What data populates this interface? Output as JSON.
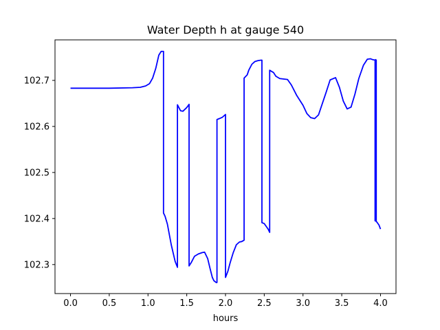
{
  "chart_data": {
    "type": "line",
    "title": "Water Depth h at gauge 540",
    "xlabel": "hours",
    "ylabel": "",
    "xlim": [
      -0.2,
      4.2
    ],
    "ylim": [
      102.237,
      102.788
    ],
    "grid": false,
    "x_ticks": [
      {
        "value": 0.0,
        "label": "0.0"
      },
      {
        "value": 0.5,
        "label": "0.5"
      },
      {
        "value": 1.0,
        "label": "1.0"
      },
      {
        "value": 1.5,
        "label": "1.5"
      },
      {
        "value": 2.0,
        "label": "2.0"
      },
      {
        "value": 2.5,
        "label": "2.5"
      },
      {
        "value": 3.0,
        "label": "3.0"
      },
      {
        "value": 3.5,
        "label": "3.5"
      },
      {
        "value": 4.0,
        "label": "4.0"
      }
    ],
    "y_ticks": [
      {
        "value": 102.3,
        "label": "102.3"
      },
      {
        "value": 102.4,
        "label": "102.4"
      },
      {
        "value": 102.5,
        "label": "102.5"
      },
      {
        "value": 102.6,
        "label": "102.6"
      },
      {
        "value": 102.7,
        "label": "102.7"
      }
    ],
    "series": [
      {
        "color": "#0000ff",
        "x": [
          0.0,
          0.5,
          0.8,
          0.9,
          0.97,
          1.02,
          1.06,
          1.1,
          1.14,
          1.17,
          1.19,
          1.2,
          1.2,
          1.22,
          1.25,
          1.3,
          1.35,
          1.38,
          1.38,
          1.42,
          1.45,
          1.5,
          1.53,
          1.53,
          1.56,
          1.6,
          1.65,
          1.7,
          1.73,
          1.77,
          1.8,
          1.83,
          1.85,
          1.88,
          1.89,
          1.89,
          1.92,
          1.96,
          2.0,
          2.0,
          2.03,
          2.06,
          2.1,
          2.14,
          2.18,
          2.21,
          2.24,
          2.24,
          2.28,
          2.3,
          2.34,
          2.38,
          2.42,
          2.46,
          2.47,
          2.47,
          2.5,
          2.55,
          2.57,
          2.57,
          2.62,
          2.65,
          2.7,
          2.8,
          2.85,
          2.92,
          3.0,
          3.05,
          3.1,
          3.15,
          3.2,
          3.25,
          3.3,
          3.35,
          3.42,
          3.47,
          3.52,
          3.57,
          3.62,
          3.67,
          3.72,
          3.78,
          3.83,
          3.87,
          3.9,
          3.93,
          3.93,
          3.935,
          3.94,
          3.94,
          3.945,
          3.945,
          3.95,
          3.98,
          4.0
        ],
        "y": [
          102.683,
          102.683,
          102.684,
          102.685,
          102.688,
          102.693,
          102.705,
          102.726,
          102.755,
          102.763,
          102.763,
          102.763,
          102.412,
          102.405,
          102.388,
          102.343,
          102.307,
          102.294,
          102.647,
          102.634,
          102.633,
          102.641,
          102.648,
          102.297,
          102.305,
          102.318,
          102.323,
          102.326,
          102.327,
          102.313,
          102.292,
          102.272,
          102.265,
          102.261,
          102.261,
          102.615,
          102.617,
          102.62,
          102.626,
          102.272,
          102.285,
          102.304,
          102.326,
          102.343,
          102.349,
          102.35,
          102.353,
          102.705,
          102.712,
          102.722,
          102.735,
          102.741,
          102.743,
          102.744,
          102.744,
          102.391,
          102.389,
          102.377,
          102.37,
          102.722,
          102.717,
          102.709,
          102.704,
          102.702,
          102.69,
          102.667,
          102.646,
          102.628,
          102.619,
          102.617,
          102.625,
          102.65,
          102.675,
          102.701,
          102.706,
          102.685,
          102.655,
          102.638,
          102.642,
          102.67,
          102.704,
          102.733,
          102.746,
          102.747,
          102.745,
          102.744,
          102.395,
          102.745,
          102.745,
          102.395,
          102.744,
          102.393,
          102.393,
          102.386,
          102.377
        ]
      }
    ]
  }
}
